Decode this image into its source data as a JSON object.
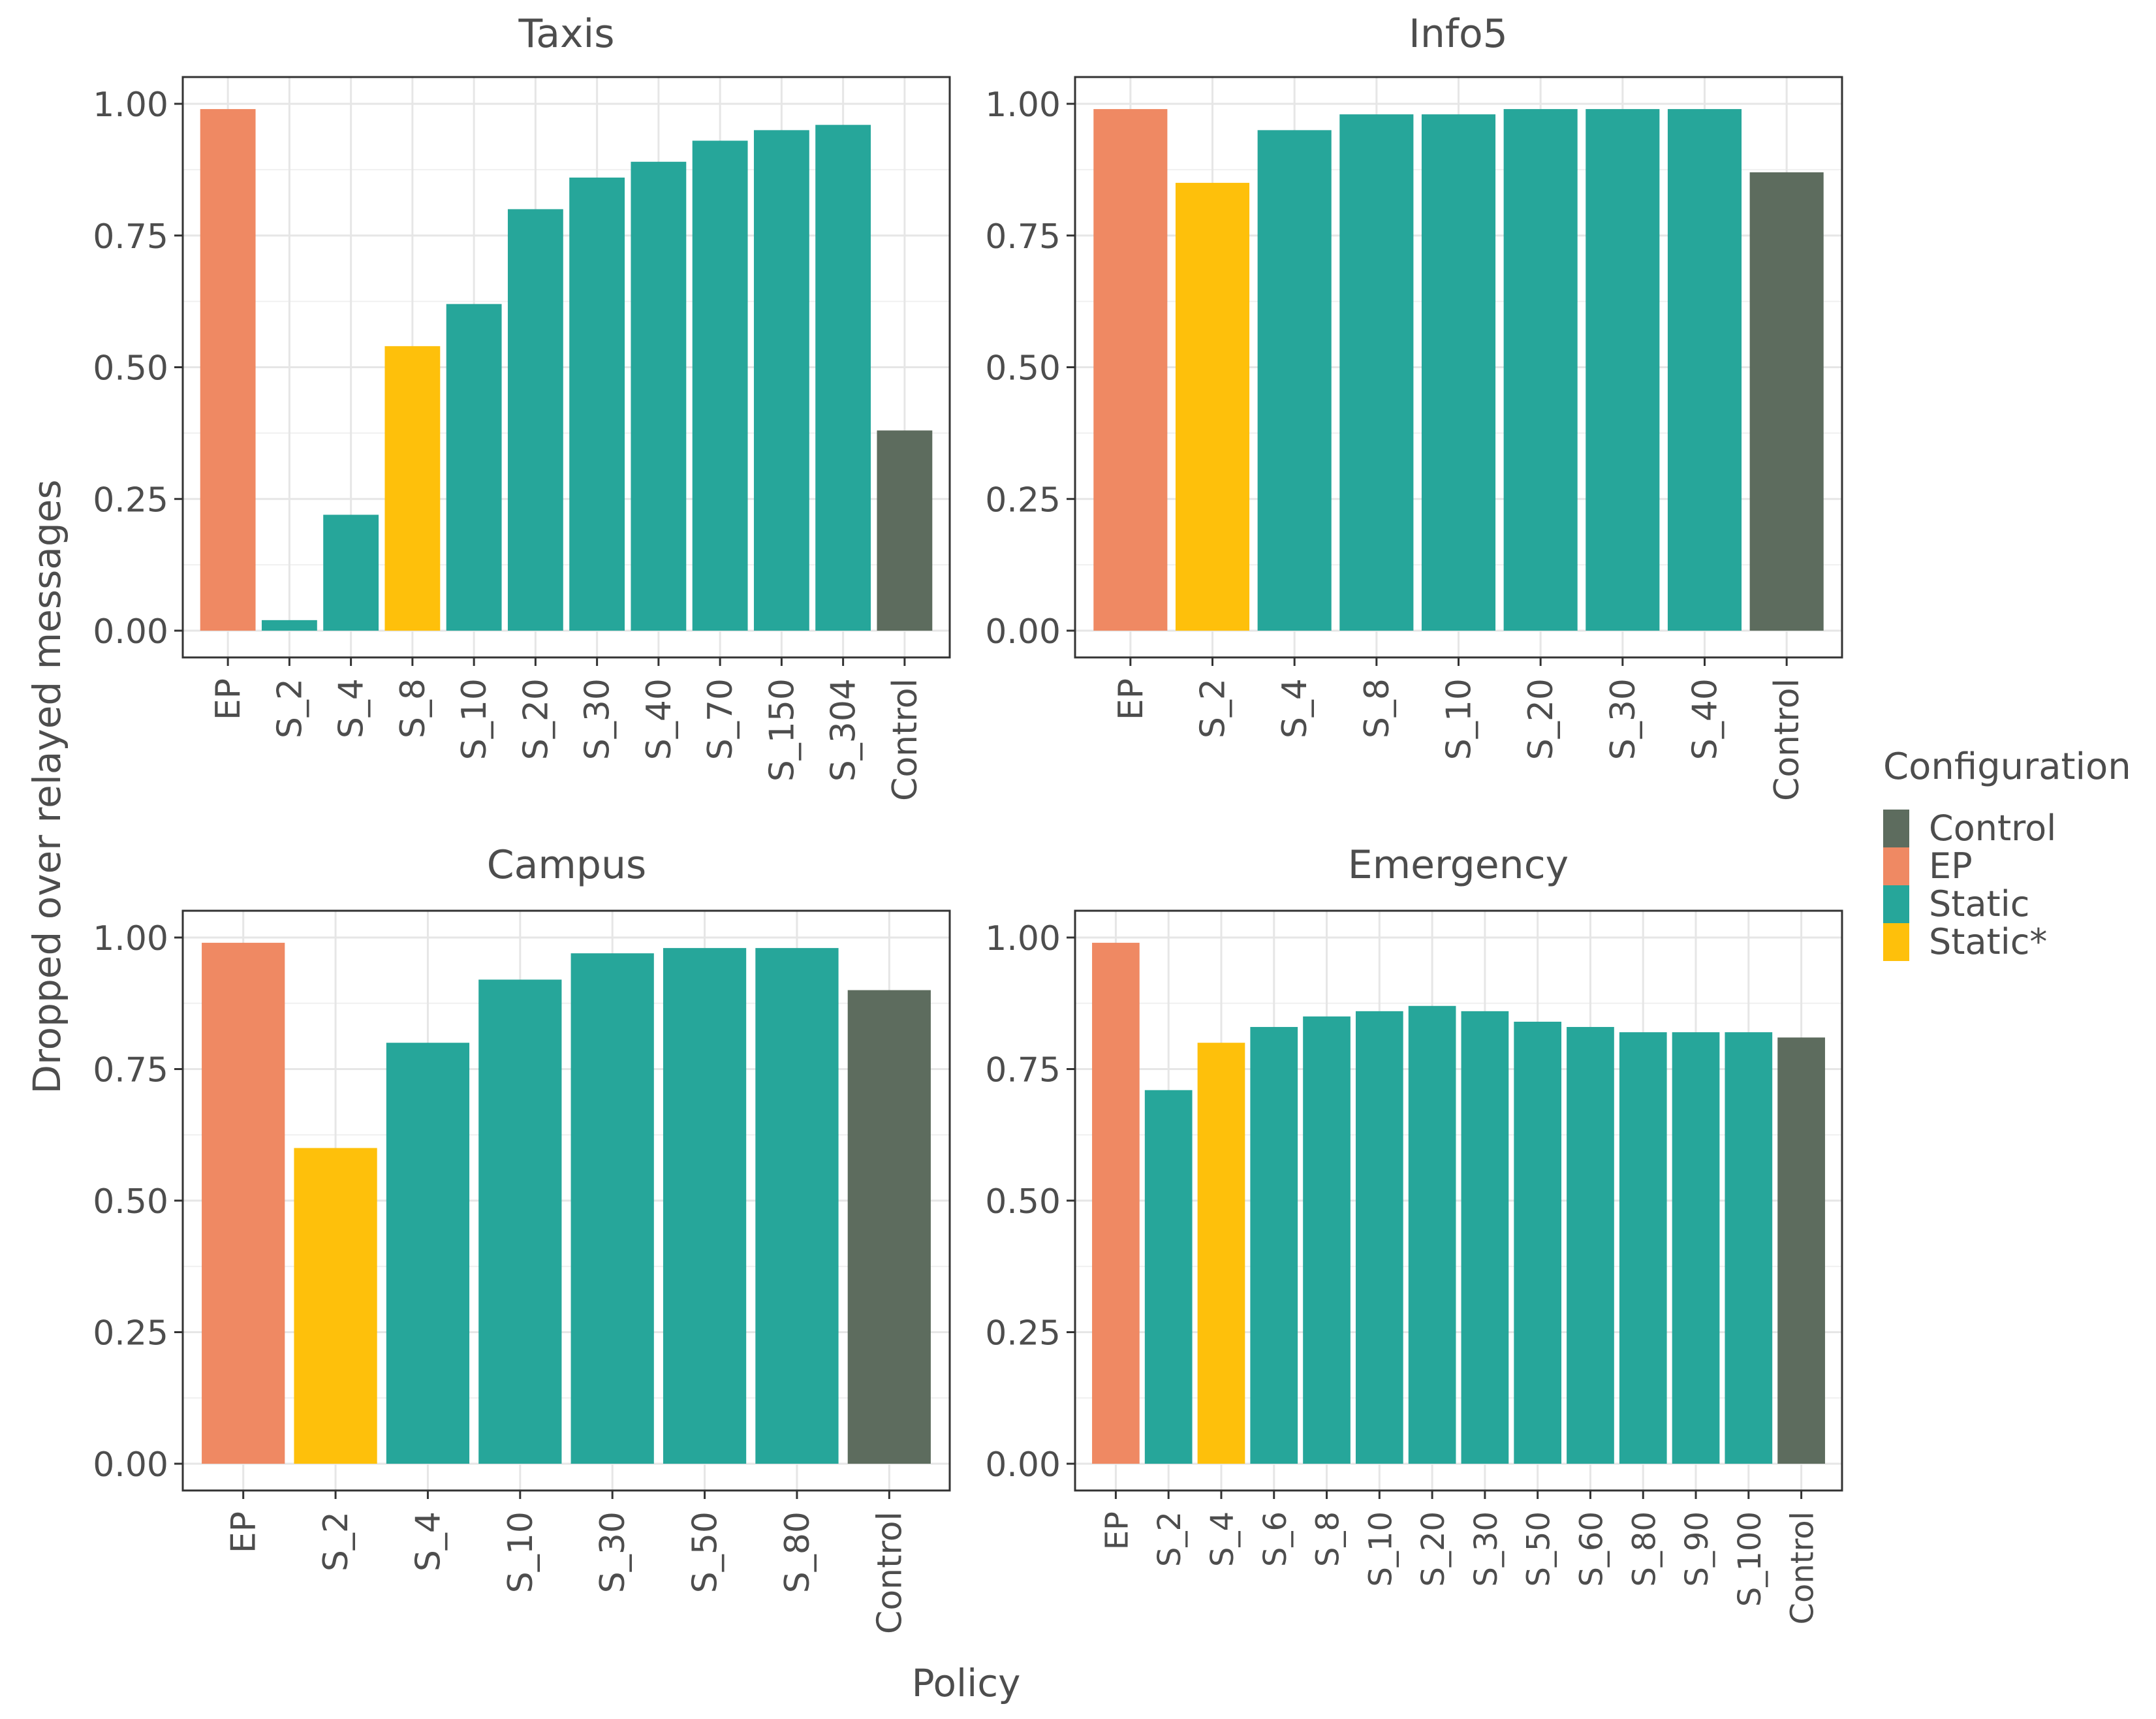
{
  "y_axis_label": "Dropped over relayed messages",
  "x_axis_label": "Policy",
  "legend": {
    "title": "Configuration",
    "items": [
      {
        "label": "Control",
        "color": "#5d6c5e"
      },
      {
        "label": "EP",
        "color": "#ef8963"
      },
      {
        "label": "Static",
        "color": "#26a69a"
      },
      {
        "label": "Static*",
        "color": "#fec00b"
      }
    ]
  },
  "chart_data": [
    {
      "type": "bar",
      "title": "Taxis",
      "xlabel": "Policy",
      "ylabel": "Dropped over relayed messages",
      "ylim": [
        0,
        1
      ],
      "yticks": [
        "0.00",
        "0.25",
        "0.50",
        "0.75",
        "1.00"
      ],
      "categories": [
        "EP",
        "S_2",
        "S_4",
        "S_8",
        "S_10",
        "S_20",
        "S_30",
        "S_40",
        "S_70",
        "S_150",
        "S_304",
        "Control"
      ],
      "values": [
        0.99,
        0.02,
        0.22,
        0.54,
        0.62,
        0.8,
        0.86,
        0.89,
        0.93,
        0.95,
        0.96,
        0.38
      ],
      "configurations": [
        "EP",
        "Static",
        "Static",
        "Static*",
        "Static",
        "Static",
        "Static",
        "Static",
        "Static",
        "Static",
        "Static",
        "Control"
      ]
    },
    {
      "type": "bar",
      "title": "Info5",
      "xlabel": "Policy",
      "ylabel": "Dropped over relayed messages",
      "ylim": [
        0,
        1
      ],
      "yticks": [
        "0.00",
        "0.25",
        "0.50",
        "0.75",
        "1.00"
      ],
      "categories": [
        "EP",
        "S_2",
        "S_4",
        "S_8",
        "S_10",
        "S_20",
        "S_30",
        "S_40",
        "Control"
      ],
      "values": [
        0.99,
        0.85,
        0.95,
        0.98,
        0.98,
        0.99,
        0.99,
        0.99,
        0.87
      ],
      "configurations": [
        "EP",
        "Static*",
        "Static",
        "Static",
        "Static",
        "Static",
        "Static",
        "Static",
        "Control"
      ]
    },
    {
      "type": "bar",
      "title": "Campus",
      "xlabel": "Policy",
      "ylabel": "Dropped over relayed messages",
      "ylim": [
        0,
        1
      ],
      "yticks": [
        "0.00",
        "0.25",
        "0.50",
        "0.75",
        "1.00"
      ],
      "categories": [
        "EP",
        "S_2",
        "S_4",
        "S_10",
        "S_30",
        "S_50",
        "S_80",
        "Control"
      ],
      "values": [
        0.99,
        0.6,
        0.8,
        0.92,
        0.97,
        0.98,
        0.98,
        0.9
      ],
      "configurations": [
        "EP",
        "Static*",
        "Static",
        "Static",
        "Static",
        "Static",
        "Static",
        "Control"
      ]
    },
    {
      "type": "bar",
      "title": "Emergency",
      "xlabel": "Policy",
      "ylabel": "Dropped over relayed messages",
      "ylim": [
        0,
        1
      ],
      "yticks": [
        "0.00",
        "0.25",
        "0.50",
        "0.75",
        "1.00"
      ],
      "categories": [
        "EP",
        "S_2",
        "S_4",
        "S_6",
        "S_8",
        "S_10",
        "S_20",
        "S_30",
        "S_50",
        "S_60",
        "S_80",
        "S_90",
        "S_100",
        "Control"
      ],
      "values": [
        0.99,
        0.71,
        0.8,
        0.83,
        0.85,
        0.86,
        0.87,
        0.86,
        0.84,
        0.83,
        0.82,
        0.82,
        0.82,
        0.81
      ],
      "configurations": [
        "EP",
        "Static",
        "Static*",
        "Static",
        "Static",
        "Static",
        "Static",
        "Static",
        "Static",
        "Static",
        "Static",
        "Static",
        "Static",
        "Control"
      ]
    }
  ]
}
